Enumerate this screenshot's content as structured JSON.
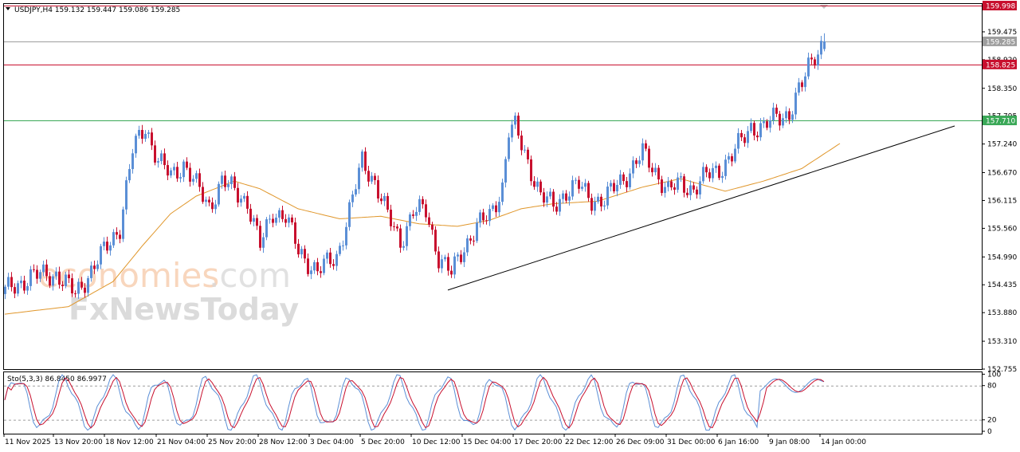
{
  "chart_data": {
    "type": "candlestick",
    "symbol_header": "USDJPY,H4  159.132 159.447 159.086 159.285",
    "ohlc_last": {
      "open": 159.132,
      "high": 159.447,
      "low": 159.086,
      "close": 159.285
    },
    "y_ticks": [
      "159.475",
      "158.920",
      "158.350",
      "157.795",
      "157.240",
      "156.670",
      "156.115",
      "155.560",
      "154.990",
      "154.435",
      "153.880",
      "153.310",
      "152.755"
    ],
    "ylim": [
      152.755,
      160.03
    ],
    "x_labels": [
      "11 Nov 2025",
      "13 Nov 20:00",
      "18 Nov 12:00",
      "21 Nov 04:00",
      "25 Nov 20:00",
      "28 Nov 12:00",
      "3 Dec 04:00",
      "5 Dec 20:00",
      "10 Dec 12:00",
      "15 Dec 04:00",
      "17 Dec 20:00",
      "22 Dec 12:00",
      "26 Dec 09:00",
      "31 Dec 00:00",
      "6 Jan 16:00",
      "9 Jan 08:00",
      "14 Jan 00:00"
    ],
    "levels": [
      {
        "value": 159.998,
        "label": "159.998",
        "color": "#c8102e"
      },
      {
        "value": 159.285,
        "label": "159.285",
        "color": "#9e9e9e"
      },
      {
        "value": 158.825,
        "label": "158.825",
        "color": "#c8102e"
      },
      {
        "value": 157.71,
        "label": "157.710",
        "color": "#3aa857"
      }
    ],
    "trendline": {
      "from": {
        "x_index": 139,
        "price": 154.33
      },
      "to": {
        "x_index": 298,
        "price": 157.6
      }
    },
    "moving_average_color": "#e0962a",
    "bull_color": "#5b8fd6",
    "bear_color": "#c8102e",
    "ma_anchors": [
      [
        0,
        153.85
      ],
      [
        20,
        154.0
      ],
      [
        34,
        154.5
      ],
      [
        43,
        155.2
      ],
      [
        52,
        155.85
      ],
      [
        60,
        156.2
      ],
      [
        72,
        156.5
      ],
      [
        80,
        156.35
      ],
      [
        92,
        155.95
      ],
      [
        105,
        155.75
      ],
      [
        118,
        155.8
      ],
      [
        130,
        155.65
      ],
      [
        142,
        155.6
      ],
      [
        152,
        155.72
      ],
      [
        162,
        155.95
      ],
      [
        172,
        156.05
      ],
      [
        186,
        156.1
      ],
      [
        200,
        156.38
      ],
      [
        212,
        156.55
      ],
      [
        226,
        156.3
      ],
      [
        238,
        156.5
      ],
      [
        250,
        156.75
      ],
      [
        262,
        157.25
      ]
    ],
    "price_anchors": [
      [
        0,
        154.3
      ],
      [
        8,
        154.6
      ],
      [
        16,
        154.65
      ],
      [
        22,
        154.25
      ],
      [
        30,
        155.0
      ],
      [
        36,
        155.6
      ],
      [
        40,
        157.1
      ],
      [
        44,
        157.6
      ],
      [
        48,
        156.9
      ],
      [
        52,
        156.6
      ],
      [
        56,
        156.85
      ],
      [
        60,
        156.4
      ],
      [
        64,
        156.0
      ],
      [
        68,
        156.5
      ],
      [
        72,
        156.3
      ],
      [
        76,
        156.1
      ],
      [
        80,
        155.2
      ],
      [
        84,
        155.9
      ],
      [
        88,
        155.8
      ],
      [
        92,
        155.1
      ],
      [
        98,
        154.7
      ],
      [
        104,
        155.0
      ],
      [
        108,
        155.9
      ],
      [
        112,
        156.9
      ],
      [
        116,
        156.5
      ],
      [
        120,
        155.8
      ],
      [
        124,
        155.3
      ],
      [
        128,
        155.9
      ],
      [
        132,
        155.9
      ],
      [
        136,
        155.0
      ],
      [
        140,
        154.65
      ],
      [
        144,
        155.2
      ],
      [
        148,
        155.6
      ],
      [
        152,
        155.8
      ],
      [
        156,
        156.4
      ],
      [
        158,
        157.5
      ],
      [
        160,
        157.55
      ],
      [
        164,
        156.9
      ],
      [
        168,
        156.2
      ],
      [
        172,
        156.0
      ],
      [
        176,
        156.3
      ],
      [
        180,
        156.4
      ],
      [
        184,
        156.15
      ],
      [
        188,
        156.1
      ],
      [
        192,
        156.45
      ],
      [
        196,
        156.7
      ],
      [
        200,
        157.05
      ],
      [
        204,
        156.7
      ],
      [
        208,
        156.3
      ],
      [
        212,
        156.45
      ],
      [
        216,
        156.35
      ],
      [
        220,
        156.6
      ],
      [
        224,
        156.75
      ],
      [
        228,
        157.0
      ],
      [
        234,
        157.6
      ],
      [
        238,
        157.55
      ],
      [
        242,
        157.8
      ],
      [
        246,
        157.85
      ],
      [
        250,
        158.4
      ],
      [
        252,
        158.8
      ],
      [
        254,
        159.05
      ],
      [
        257,
        159.285
      ]
    ],
    "stochastic": {
      "label": "Sto(5,3,3) 86.8450 86.9977",
      "k": 86.845,
      "d": 86.9977,
      "y_ticks": [
        "100",
        "80",
        "20",
        "0"
      ],
      "levels": [
        80,
        20
      ],
      "k_color": "#5b8fd6",
      "d_color": "#c8102e"
    }
  },
  "watermark": {
    "line1a": "economies",
    "line1b": ".com",
    "line2": "FxNewsToday"
  }
}
